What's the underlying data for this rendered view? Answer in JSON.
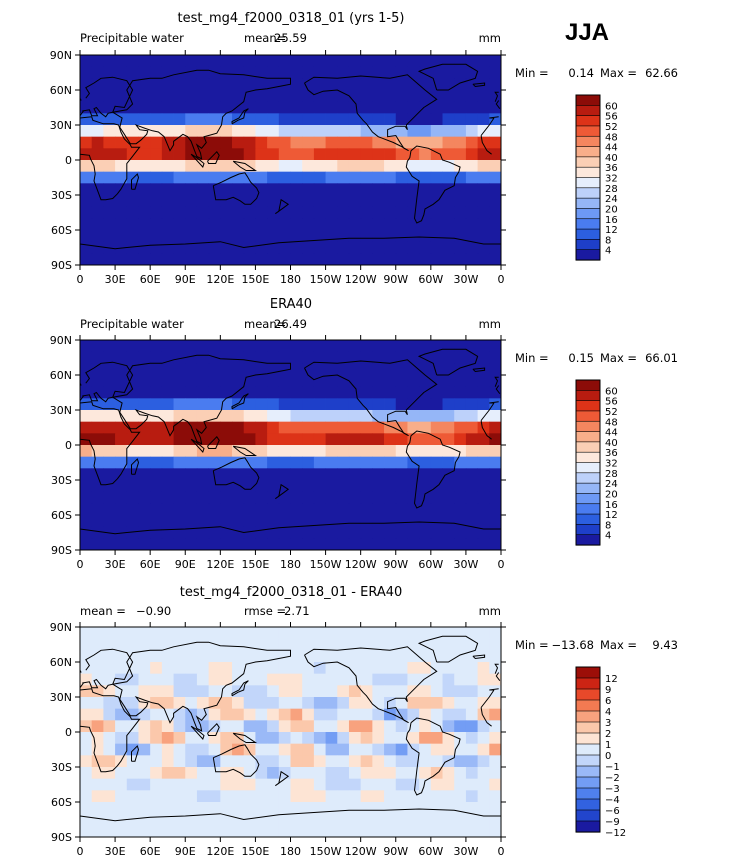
{
  "season": "JJA",
  "colors": {
    "abs_levels": [
      "#1a1aa0",
      "#1e3fc9",
      "#2c5fe0",
      "#4a7cf0",
      "#6d99f5",
      "#95b6f7",
      "#bdd1fa",
      "#e6eefc",
      "#fde8dc",
      "#fbcfb5",
      "#f8ae8a",
      "#f4865f",
      "#ee5a36",
      "#dd3318",
      "#b81c10",
      "#8c0c08"
    ],
    "diff_levels": [
      "#1a1aa0",
      "#2245cc",
      "#3262e0",
      "#4f80ee",
      "#739df4",
      "#9ab9f7",
      "#c2d6fa",
      "#deebfb",
      "#fde4d4",
      "#fbc8ab",
      "#f8a27e",
      "#f37a52",
      "#e8492a",
      "#cc2414",
      "#9c0e08"
    ]
  },
  "chart_data": [
    {
      "type": "heatmap",
      "name": "model",
      "title": "test_mg4_f2000_0318_01 (yrs 1-5)",
      "variable": "Precipitable water",
      "units": "mm",
      "stat1_label": "mean=",
      "stat1_value": "25.59",
      "min_label": "Min =",
      "min_value": "0.14",
      "max_label": "Max =",
      "max_value": "62.66",
      "x_ticks": [
        "0",
        "30E",
        "60E",
        "90E",
        "120E",
        "150E",
        "180",
        "150W",
        "120W",
        "90W",
        "60W",
        "30W",
        "0"
      ],
      "y_ticks": [
        "90N",
        "60N",
        "30N",
        "0",
        "30S",
        "60S",
        "90S"
      ],
      "colorbar_labels": [
        "60",
        "56",
        "52",
        "48",
        "44",
        "40",
        "36",
        "32",
        "28",
        "24",
        "20",
        "16",
        "12",
        "8",
        "4"
      ],
      "color_scale": "abs_levels"
    },
    {
      "type": "heatmap",
      "name": "obs",
      "title": "ERA40",
      "variable": "Precipitable water",
      "units": "mm",
      "stat1_label": "mean=",
      "stat1_value": "26.49",
      "min_label": "Min =",
      "min_value": "0.15",
      "max_label": "Max =",
      "max_value": "66.01",
      "x_ticks": [
        "0",
        "30E",
        "60E",
        "90E",
        "120E",
        "150E",
        "180",
        "150W",
        "120W",
        "90W",
        "60W",
        "30W",
        "0"
      ],
      "y_ticks": [
        "90N",
        "60N",
        "30N",
        "0",
        "30S",
        "60S",
        "90S"
      ],
      "colorbar_labels": [
        "60",
        "56",
        "52",
        "48",
        "44",
        "40",
        "36",
        "32",
        "28",
        "24",
        "20",
        "16",
        "12",
        "8",
        "4"
      ],
      "color_scale": "abs_levels"
    },
    {
      "type": "heatmap",
      "name": "diff",
      "title": "test_mg4_f2000_0318_01 - ERA40",
      "variable": "",
      "units": "mm",
      "stat1_label": "mean =",
      "stat1_value": "−0.90",
      "stat2_label": "rmse =",
      "stat2_value": "2.71",
      "min_label": "Min =",
      "min_value": "−13.68",
      "max_label": "Max =",
      "max_value": "9.43",
      "x_ticks": [
        "0",
        "30E",
        "60E",
        "90E",
        "120E",
        "150E",
        "180",
        "150W",
        "120W",
        "90W",
        "60W",
        "30W",
        "0"
      ],
      "y_ticks": [
        "90N",
        "60N",
        "30N",
        "0",
        "30S",
        "60S",
        "90S"
      ],
      "colorbar_labels": [
        "12",
        "9",
        "6",
        "4",
        "3",
        "2",
        "1",
        "0",
        "−1",
        "−2",
        "−3",
        "−4",
        "−6",
        "−9",
        "−12"
      ],
      "color_scale": "diff_levels"
    }
  ]
}
